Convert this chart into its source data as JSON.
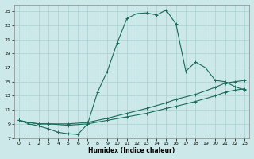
{
  "xlabel": "Humidex (Indice chaleur)",
  "xlim": [
    -0.5,
    23.5
  ],
  "ylim": [
    7,
    26
  ],
  "xticks": [
    0,
    1,
    2,
    3,
    4,
    5,
    6,
    7,
    8,
    9,
    10,
    11,
    12,
    13,
    14,
    15,
    16,
    17,
    18,
    19,
    20,
    21,
    22,
    23
  ],
  "yticks": [
    7,
    9,
    11,
    13,
    15,
    17,
    19,
    21,
    23,
    25
  ],
  "bg_color": "#cce8e8",
  "line_color": "#1a6b5a",
  "grid_color": "#aad0d0",
  "curve1_x": [
    0,
    1,
    2,
    3,
    4,
    5,
    6,
    7,
    8,
    9,
    10,
    11,
    12,
    13,
    14,
    15,
    16,
    17,
    18,
    19,
    20,
    21,
    22,
    23
  ],
  "curve1_y": [
    9.5,
    9.0,
    8.7,
    8.3,
    7.8,
    7.6,
    7.5,
    9.0,
    13.5,
    16.5,
    20.5,
    24.0,
    24.7,
    24.8,
    24.5,
    25.2,
    23.2,
    16.5,
    17.8,
    17.0,
    15.2,
    15.0,
    14.3,
    13.8
  ],
  "curve2_x": [
    0,
    1,
    2,
    3,
    5,
    7,
    9,
    11,
    13,
    15,
    16,
    18,
    20,
    21,
    22,
    23
  ],
  "curve2_y": [
    9.5,
    9.2,
    9.0,
    9.0,
    9.0,
    9.2,
    9.8,
    10.5,
    11.2,
    12.0,
    12.5,
    13.2,
    14.2,
    14.8,
    15.0,
    15.2
  ],
  "curve3_x": [
    0,
    1,
    2,
    3,
    5,
    7,
    9,
    11,
    13,
    15,
    16,
    18,
    20,
    21,
    22,
    23
  ],
  "curve3_y": [
    9.5,
    9.2,
    9.0,
    9.0,
    8.8,
    9.0,
    9.5,
    10.0,
    10.5,
    11.2,
    11.5,
    12.2,
    13.0,
    13.5,
    13.8,
    14.0
  ]
}
